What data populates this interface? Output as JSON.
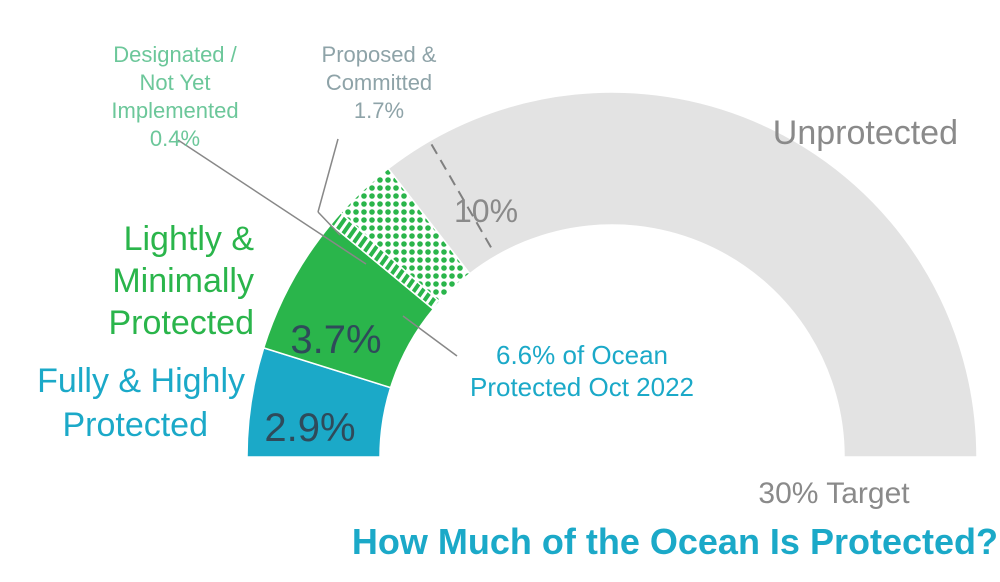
{
  "chart_data": {
    "type": "gauge",
    "title": "How Much of the Ocean Is Protected?",
    "scale_max": 30,
    "scale_max_label": "30% Target",
    "ten_percent_marker": 10,
    "ten_percent_label": "10%",
    "segments": [
      {
        "name": "Fully & Highly Protected",
        "value": 2.9,
        "value_label": "2.9%",
        "color": "#1ba9c8",
        "pattern": "solid"
      },
      {
        "name": "Lightly & Minimally Protected",
        "value": 3.7,
        "value_label": "3.7%",
        "color": "#2ab54b",
        "pattern": "solid"
      },
      {
        "name": "Designated / Not Yet Implemented",
        "value": 0.4,
        "value_label": "0.4%",
        "color": "#2ab54b",
        "pattern": "hatch"
      },
      {
        "name": "Proposed & Committed",
        "value": 1.7,
        "value_label": "1.7%",
        "color": "#2ab54b",
        "pattern": "dots"
      },
      {
        "name": "Unprotected",
        "value": 21.3,
        "value_label": "",
        "color": "#e3e3e3",
        "pattern": "solid"
      }
    ],
    "labels": {
      "fully": [
        "Fully & Highly",
        "Protected"
      ],
      "lightly": [
        "Lightly &",
        "Minimally",
        "Protected"
      ],
      "designated": [
        "Designated /",
        "Not Yet",
        "Implemented",
        "0.4%"
      ],
      "proposed": [
        "Proposed &",
        "Committed",
        "1.7%"
      ],
      "unprotected": "Unprotected",
      "total": [
        "6.6% of Ocean",
        "Protected Oct 2022"
      ]
    },
    "colors": {
      "title": "#1ba9c8",
      "fully": "#1ba9c8",
      "lightly": "#2ab54b",
      "designated": "#6cc79a",
      "proposed": "#8ea3a8",
      "unprotected": "#8a8a8a",
      "total": "#1ba9c8",
      "value_text": "#2f4a5a"
    }
  }
}
